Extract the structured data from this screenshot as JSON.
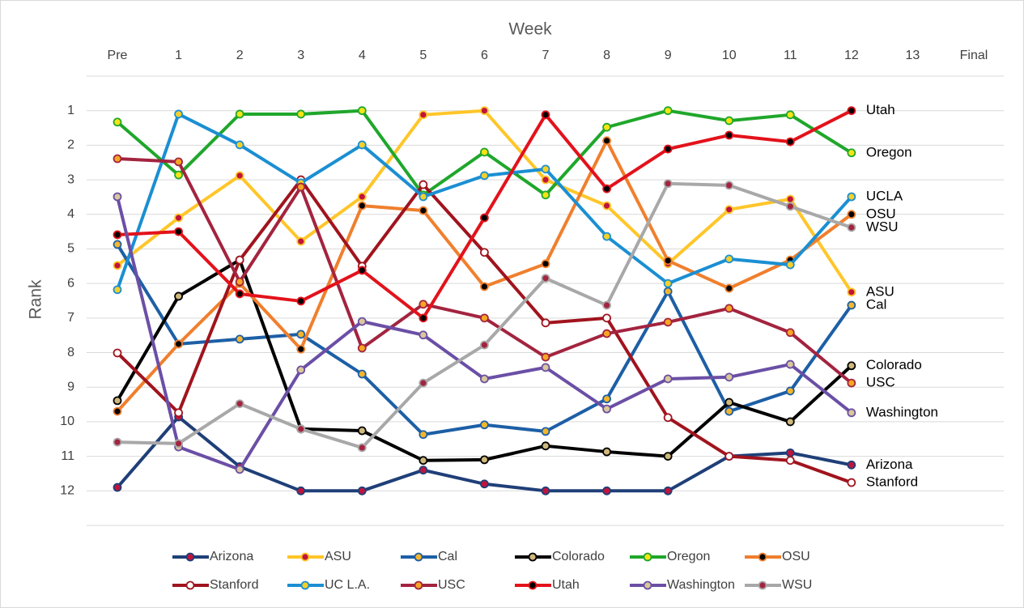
{
  "chart_data": {
    "type": "line",
    "x_label": "Week",
    "y_label": "Rank",
    "categories": [
      "Pre",
      "1",
      "2",
      "3",
      "4",
      "5",
      "6",
      "7",
      "8",
      "9",
      "10",
      "11",
      "12",
      "13",
      "Final"
    ],
    "ylim": [
      0,
      13
    ],
    "yticks": [
      1,
      2,
      3,
      4,
      5,
      6,
      7,
      8,
      9,
      10,
      11,
      12
    ],
    "y_inverted": true,
    "grid": true,
    "series": [
      {
        "name": "Arizona",
        "end_label": "Arizona",
        "color": "#1f3f78",
        "marker_color": "#c0143c",
        "values": [
          11.9,
          9.86,
          11.3,
          12,
          12,
          11.4,
          11.8,
          12,
          12,
          12,
          11,
          10.9,
          11.25,
          null,
          null
        ]
      },
      {
        "name": "ASU",
        "end_label": "ASU",
        "color": "#ffc629",
        "marker_color": "#c0143c",
        "values": [
          5.48,
          4.1,
          2.88,
          4.78,
          3.49,
          1.12,
          1.0,
          3.0,
          3.75,
          5.43,
          3.86,
          3.56,
          6.25,
          null,
          null
        ]
      },
      {
        "name": "Cal",
        "end_label": "Cal",
        "color": "#1d5fa6",
        "marker_color": "#f5b52a",
        "values": [
          4.87,
          7.75,
          7.61,
          7.47,
          8.62,
          10.37,
          10.09,
          10.28,
          9.34,
          6.23,
          9.7,
          9.11,
          6.63,
          null,
          null
        ]
      },
      {
        "name": "Colorado",
        "end_label": "Colorado",
        "color": "#000000",
        "marker_color": "#cfb87c",
        "values": [
          9.39,
          6.37,
          5.32,
          10.21,
          10.26,
          11.12,
          11.1,
          10.7,
          10.87,
          11.0,
          9.44,
          10.0,
          8.38,
          null,
          null
        ]
      },
      {
        "name": "Oregon",
        "end_label": "Oregon",
        "color": "#1fa72b",
        "marker_color": "#f7e316",
        "values": [
          1.33,
          2.86,
          1.1,
          1.1,
          1.0,
          3.44,
          2.2,
          3.44,
          1.48,
          1.0,
          1.29,
          1.12,
          2.22,
          null,
          null
        ]
      },
      {
        "name": "OSU",
        "end_label": "OSU",
        "color": "#f07f2d",
        "marker_color": "#000000",
        "values": [
          9.7,
          7.75,
          6.0,
          7.9,
          3.75,
          3.89,
          6.09,
          5.43,
          1.87,
          5.34,
          6.14,
          5.32,
          4.0,
          null,
          null
        ]
      },
      {
        "name": "Stanford",
        "end_label": "Stanford",
        "color": "#a0141e",
        "marker_color": "#ffffff",
        "values": [
          8.01,
          9.74,
          5.32,
          3.0,
          5.5,
          3.14,
          5.1,
          7.14,
          7.0,
          9.88,
          11.0,
          11.12,
          11.76,
          null,
          null
        ]
      },
      {
        "name": "UC L.A.",
        "end_label": "UCLA",
        "color": "#1b8fd2",
        "marker_color": "#f5d02a",
        "values": [
          6.18,
          1.1,
          1.99,
          3.09,
          1.99,
          3.49,
          2.88,
          2.69,
          4.64,
          6.0,
          5.29,
          5.46,
          3.49,
          null,
          null
        ]
      },
      {
        "name": "USC",
        "end_label": "USC",
        "color": "#a3243f",
        "marker_color": "#f5a623",
        "values": [
          2.39,
          2.48,
          5.95,
          3.21,
          7.87,
          6.6,
          7.0,
          8.13,
          7.45,
          7.12,
          6.72,
          7.42,
          8.88,
          null,
          null
        ]
      },
      {
        "name": "Utah",
        "end_label": "Utah",
        "color": "#e3121b",
        "marker_color": "#000000",
        "values": [
          4.59,
          4.5,
          6.3,
          6.51,
          5.62,
          7.0,
          4.1,
          1.12,
          3.26,
          2.11,
          1.71,
          1.9,
          1.0,
          null,
          null
        ]
      },
      {
        "name": "Washington",
        "end_label": "Washington",
        "color": "#6b4fa5",
        "marker_color": "#d8c89a",
        "values": [
          3.49,
          10.73,
          11.38,
          8.5,
          7.1,
          7.49,
          8.76,
          8.43,
          9.63,
          8.76,
          8.71,
          8.34,
          9.74,
          null,
          null
        ]
      },
      {
        "name": "WSU",
        "end_label": "WSU",
        "color": "#a8a8a8",
        "marker_color": "#a3243f",
        "values": [
          10.59,
          10.63,
          9.48,
          10.21,
          10.75,
          8.88,
          7.78,
          5.85,
          6.63,
          3.11,
          3.16,
          3.77,
          4.38,
          null,
          null
        ]
      }
    ]
  }
}
